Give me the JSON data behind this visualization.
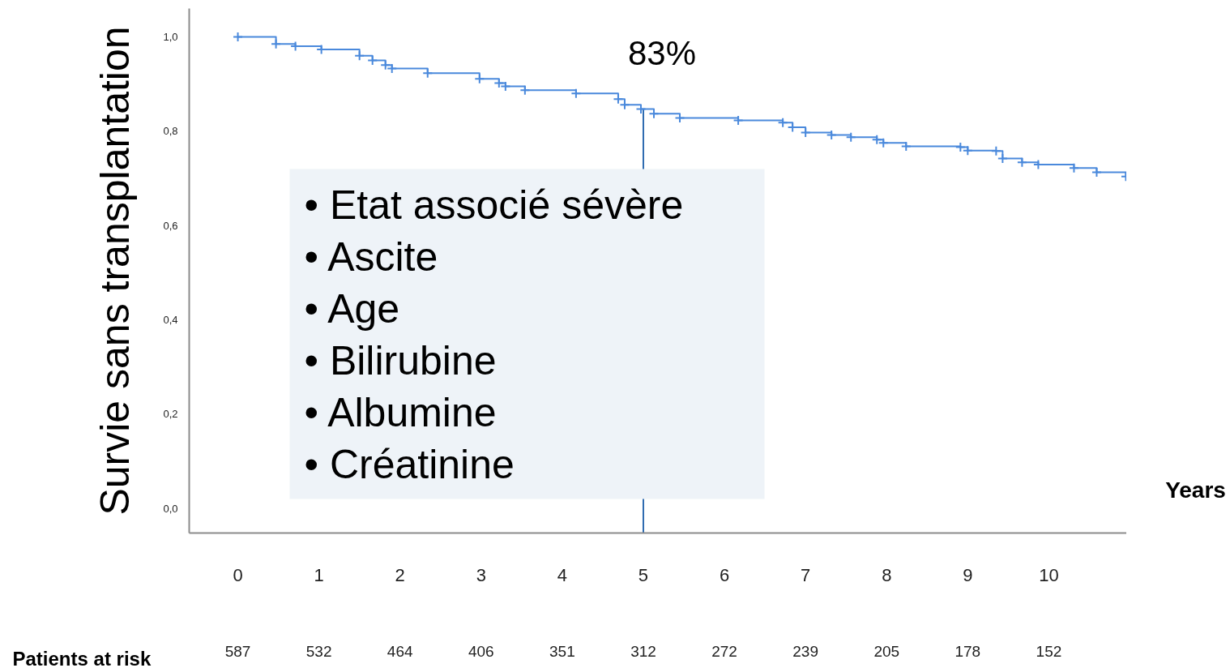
{
  "chart_data": {
    "type": "step",
    "xlabel": "Years",
    "ylabel": "Survie sans transplantation",
    "xlim": [
      -0.6,
      10.96
    ],
    "ylim": [
      -0.052,
      1.06
    ],
    "xticks": [
      0,
      1,
      2,
      3,
      4,
      5,
      6,
      7,
      8,
      9,
      10
    ],
    "yticks": [
      {
        "value": 0,
        "label": "0,0"
      },
      {
        "value": 0.2,
        "label": "0,2"
      },
      {
        "value": 0.4,
        "label": "0,4"
      },
      {
        "value": 0.6,
        "label": "0,6"
      },
      {
        "value": 0.8,
        "label": "0,8"
      },
      {
        "value": 1,
        "label": "1,0"
      }
    ],
    "grid": false,
    "marker": "cross",
    "series": [
      {
        "color": "#4a89dc",
        "x": [
          0,
          0.47,
          0.71,
          1.03,
          1.5,
          1.66,
          1.82,
          1.9,
          2.34,
          2.98,
          3.22,
          3.3,
          3.54,
          4.17,
          4.69,
          4.77,
          4.97,
          5.13,
          5.45,
          6.17,
          6.72,
          6.84,
          7.0,
          7.32,
          7.56,
          7.88,
          7.96,
          8.24,
          8.91,
          9.0,
          9.35,
          9.43,
          9.67,
          9.87,
          10.31,
          10.59,
          10.95
        ],
        "values": [
          1.0,
          0.985,
          0.98,
          0.973,
          0.96,
          0.95,
          0.94,
          0.933,
          0.923,
          0.911,
          0.902,
          0.895,
          0.887,
          0.88,
          0.868,
          0.856,
          0.847,
          0.837,
          0.828,
          0.823,
          0.818,
          0.808,
          0.797,
          0.792,
          0.787,
          0.782,
          0.775,
          0.768,
          0.766,
          0.759,
          0.758,
          0.742,
          0.734,
          0.729,
          0.722,
          0.713,
          0.704
        ]
      }
    ],
    "ref_lines": [
      {
        "axis": "x",
        "value": 5,
        "color": "#2e6bb0"
      }
    ],
    "annotations": [
      "83%",
      "•   Etat associé sévère",
      "•   Ascite",
      "•   Age",
      "•   Bilirubine",
      "•   Albumine",
      "•   Créatinine",
      "Patients at risk",
      "587",
      "532",
      "464",
      "406",
      "351",
      "312",
      "272",
      "239",
      "205",
      "178",
      "152"
    ]
  }
}
